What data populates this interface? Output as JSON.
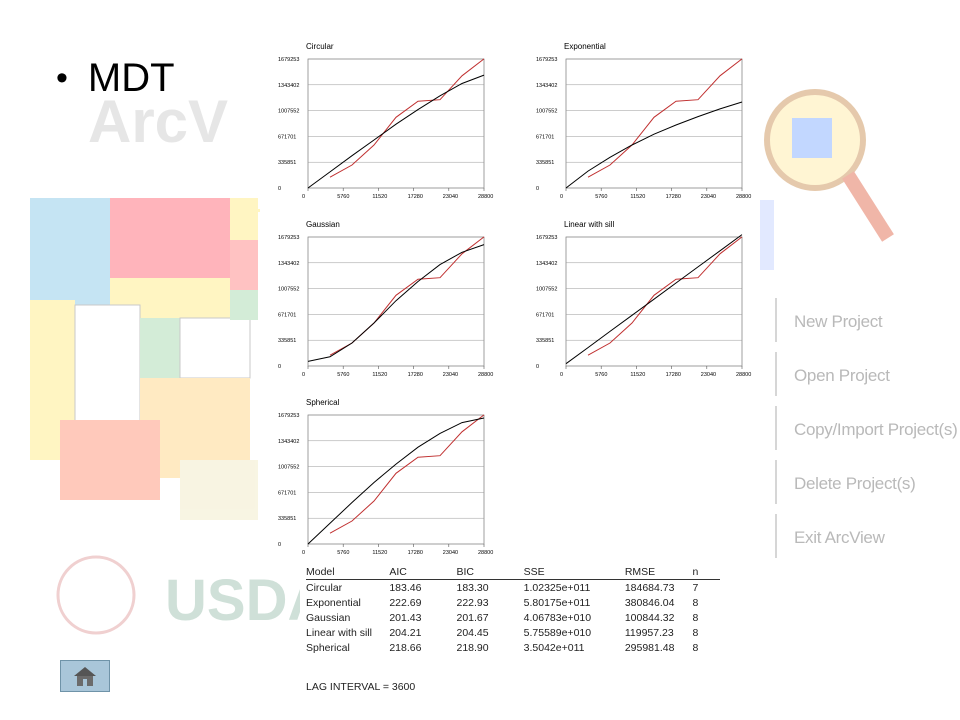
{
  "slide": {
    "bullet_text": "MDT",
    "background_title": "ArcV",
    "background_logo": "USDA",
    "menu_items": [
      "New Project",
      "Open Project",
      "Copy/Import Project(s)",
      "Delete Project(s)",
      "Exit ArcView"
    ]
  },
  "home_button": {
    "icon": "home-icon"
  },
  "chart_data": [
    {
      "type": "line",
      "title": "Circular",
      "x_ticks": [
        "0",
        "5760",
        "11520",
        "17280",
        "23040",
        "28800"
      ],
      "y_ticks": [
        "0",
        "335851",
        "671701",
        "1007552",
        "1343402",
        "1679253"
      ],
      "xlim": [
        0,
        28800
      ],
      "ylim": [
        0,
        1679253
      ],
      "series": [
        {
          "color": "#c03030",
          "x": [
            3600,
            7200,
            10800,
            14400,
            18000,
            21600,
            25200,
            28800
          ],
          "y": [
            140000,
            300000,
            560000,
            920000,
            1130000,
            1150000,
            1460000,
            1680000
          ]
        },
        {
          "color": "#000000",
          "x": [
            0,
            3600,
            7200,
            10800,
            14400,
            18000,
            21600,
            25200,
            28800
          ],
          "y": [
            0,
            210000,
            420000,
            625000,
            830000,
            1020000,
            1200000,
            1360000,
            1470000
          ]
        }
      ]
    },
    {
      "type": "line",
      "title": "Exponential",
      "x_ticks": [
        "0",
        "5760",
        "11520",
        "17280",
        "23040",
        "28800"
      ],
      "y_ticks": [
        "0",
        "335851",
        "671701",
        "1007552",
        "1343402",
        "1679253"
      ],
      "xlim": [
        0,
        28800
      ],
      "ylim": [
        0,
        1679253
      ],
      "series": [
        {
          "color": "#c03030",
          "x": [
            3600,
            7200,
            10800,
            14400,
            18000,
            21600,
            25200,
            28800
          ],
          "y": [
            140000,
            300000,
            560000,
            920000,
            1130000,
            1150000,
            1460000,
            1680000
          ]
        },
        {
          "color": "#000000",
          "x": [
            0,
            3600,
            7200,
            10800,
            14400,
            18000,
            21600,
            25200,
            28800
          ],
          "y": [
            0,
            220000,
            400000,
            560000,
            700000,
            820000,
            930000,
            1030000,
            1120000
          ]
        }
      ]
    },
    {
      "type": "line",
      "title": "Gaussian",
      "x_ticks": [
        "0",
        "5760",
        "11520",
        "17280",
        "23040",
        "28800"
      ],
      "y_ticks": [
        "0",
        "335851",
        "671701",
        "1007552",
        "1343402",
        "1679253"
      ],
      "xlim": [
        0,
        28800
      ],
      "ylim": [
        0,
        1679253
      ],
      "series": [
        {
          "color": "#c03030",
          "x": [
            3600,
            7200,
            10800,
            14400,
            18000,
            21600,
            25200,
            28800
          ],
          "y": [
            140000,
            300000,
            560000,
            920000,
            1130000,
            1150000,
            1460000,
            1680000
          ]
        },
        {
          "color": "#000000",
          "x": [
            0,
            3600,
            7200,
            10800,
            14400,
            18000,
            21600,
            25200,
            28800
          ],
          "y": [
            60000,
            120000,
            300000,
            560000,
            850000,
            1100000,
            1320000,
            1480000,
            1580000
          ]
        }
      ]
    },
    {
      "type": "line",
      "title": "Linear with sill",
      "x_ticks": [
        "0",
        "5760",
        "11520",
        "17280",
        "23040",
        "28800"
      ],
      "y_ticks": [
        "0",
        "335851",
        "671701",
        "1007552",
        "1343402",
        "1679253"
      ],
      "xlim": [
        0,
        28800
      ],
      "ylim": [
        0,
        1679253
      ],
      "series": [
        {
          "color": "#c03030",
          "x": [
            3600,
            7200,
            10800,
            14400,
            18000,
            21600,
            25200,
            28800
          ],
          "y": [
            140000,
            300000,
            560000,
            920000,
            1130000,
            1150000,
            1460000,
            1680000
          ]
        },
        {
          "color": "#000000",
          "x": [
            0,
            3600,
            7200,
            10800,
            14400,
            18000,
            21600,
            25200,
            28800
          ],
          "y": [
            30000,
            240000,
            450000,
            660000,
            870000,
            1080000,
            1290000,
            1500000,
            1710000
          ]
        }
      ]
    },
    {
      "type": "line",
      "title": "Spherical",
      "x_ticks": [
        "0",
        "5760",
        "11520",
        "17280",
        "23040",
        "28800"
      ],
      "y_ticks": [
        "0",
        "335851",
        "671701",
        "1007552",
        "1343402",
        "1679253"
      ],
      "xlim": [
        0,
        28800
      ],
      "ylim": [
        0,
        1679253
      ],
      "series": [
        {
          "color": "#c03030",
          "x": [
            3600,
            7200,
            10800,
            14400,
            18000,
            21600,
            25200,
            28800
          ],
          "y": [
            140000,
            300000,
            560000,
            920000,
            1130000,
            1150000,
            1460000,
            1680000
          ]
        },
        {
          "color": "#000000",
          "x": [
            0,
            3600,
            7200,
            10800,
            14400,
            18000,
            21600,
            25200,
            28800
          ],
          "y": [
            0,
            270000,
            540000,
            800000,
            1040000,
            1260000,
            1440000,
            1580000,
            1640000
          ]
        }
      ]
    },
    {
      "type": "table",
      "columns": [
        "Model",
        "AIC",
        "BIC",
        "SSE",
        "RMSE",
        "n"
      ],
      "rows": [
        [
          "Circular",
          "183.46",
          "183.30",
          "1.02325e+011",
          "184684.73",
          "7"
        ],
        [
          "Exponential",
          "222.69",
          "222.93",
          "5.80175e+011",
          "380846.04",
          "8"
        ],
        [
          "Gaussian",
          "201.43",
          "201.67",
          "4.06783e+010",
          "100844.32",
          "8"
        ],
        [
          "Linear with sill",
          "204.21",
          "204.45",
          "5.75589e+010",
          "119957.23",
          "8"
        ],
        [
          "Spherical",
          "218.66",
          "218.90",
          "3.5042e+011",
          "295981.48",
          "8"
        ]
      ],
      "footnote": "LAG INTERVAL = 3600"
    }
  ]
}
